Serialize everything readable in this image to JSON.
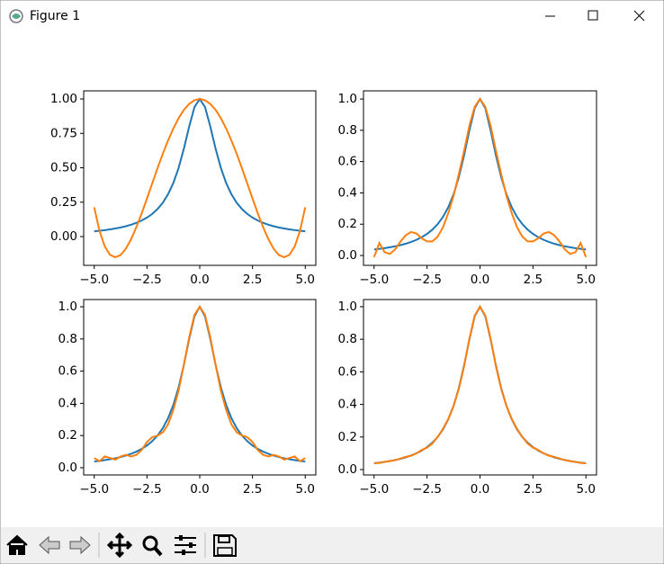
{
  "window": {
    "title": "Figure 1"
  },
  "chart_data": [
    {
      "type": "line",
      "x": [
        -5,
        -4.75,
        -4.5,
        -4.25,
        -4,
        -3.75,
        -3.5,
        -3.25,
        -3,
        -2.75,
        -2.5,
        -2.25,
        -2,
        -1.75,
        -1.5,
        -1.25,
        -1,
        -0.75,
        -0.5,
        -0.25,
        0,
        0.25,
        0.5,
        0.75,
        1,
        1.25,
        1.5,
        1.75,
        2,
        2.25,
        2.5,
        2.75,
        3,
        3.25,
        3.5,
        3.75,
        4,
        4.25,
        4.5,
        4.75,
        5
      ],
      "series": [
        {
          "color": "#1f77b4",
          "values": [
            0.0385,
            0.0424,
            0.0471,
            0.0525,
            0.0588,
            0.0664,
            0.0755,
            0.0865,
            0.1,
            0.117,
            0.138,
            0.165,
            0.2,
            0.246,
            0.308,
            0.39,
            0.5,
            0.64,
            0.8,
            0.941,
            1,
            0.941,
            0.8,
            0.64,
            0.5,
            0.39,
            0.308,
            0.246,
            0.2,
            0.165,
            0.138,
            0.117,
            0.1,
            0.0865,
            0.0755,
            0.0664,
            0.0588,
            0.0525,
            0.0471,
            0.0424,
            0.0385
          ]
        },
        {
          "color": "#ff7f0e",
          "values": [
            0.213,
            0.041,
            -0.071,
            -0.133,
            -0.15,
            -0.134,
            -0.088,
            -0.018,
            0.07,
            0.169,
            0.277,
            0.387,
            0.497,
            0.602,
            0.699,
            0.786,
            0.861,
            0.921,
            0.964,
            0.991,
            1,
            0.991,
            0.964,
            0.921,
            0.861,
            0.786,
            0.699,
            0.602,
            0.497,
            0.387,
            0.277,
            0.169,
            0.07,
            -0.018,
            -0.088,
            -0.134,
            -0.15,
            -0.133,
            -0.071,
            0.041,
            0.213
          ]
        }
      ],
      "xlim": [
        -5.5,
        5.5
      ],
      "ylim": [
        -0.209,
        1.059
      ],
      "xticks": [
        {
          "value": -5,
          "label": "−5.0"
        },
        {
          "value": -2.5,
          "label": "−2.5"
        },
        {
          "value": 0,
          "label": "0.0"
        },
        {
          "value": 2.5,
          "label": "2.5"
        },
        {
          "value": 5,
          "label": "5.0"
        }
      ],
      "yticks": [
        {
          "value": 0,
          "label": "0.00"
        },
        {
          "value": 0.25,
          "label": "0.25"
        },
        {
          "value": 0.5,
          "label": "0.50"
        },
        {
          "value": 0.75,
          "label": "0.75"
        },
        {
          "value": 1,
          "label": "1.00"
        }
      ]
    },
    {
      "type": "line",
      "x": [
        -5,
        -4.75,
        -4.5,
        -4.25,
        -4,
        -3.75,
        -3.5,
        -3.25,
        -3,
        -2.75,
        -2.5,
        -2.25,
        -2,
        -1.75,
        -1.5,
        -1.25,
        -1,
        -0.75,
        -0.5,
        -0.25,
        0,
        0.25,
        0.5,
        0.75,
        1,
        1.25,
        1.5,
        1.75,
        2,
        2.25,
        2.5,
        2.75,
        3,
        3.25,
        3.5,
        3.75,
        4,
        4.25,
        4.5,
        4.75,
        5
      ],
      "series": [
        {
          "color": "#1f77b4",
          "values": [
            0.0385,
            0.0424,
            0.0471,
            0.0525,
            0.0588,
            0.0664,
            0.0755,
            0.0865,
            0.1,
            0.117,
            0.138,
            0.165,
            0.2,
            0.246,
            0.308,
            0.39,
            0.5,
            0.64,
            0.8,
            0.941,
            1,
            0.941,
            0.8,
            0.64,
            0.5,
            0.39,
            0.308,
            0.246,
            0.2,
            0.165,
            0.138,
            0.117,
            0.1,
            0.0865,
            0.0755,
            0.0664,
            0.0588,
            0.0525,
            0.0471,
            0.0424,
            0.0385
          ]
        },
        {
          "color": "#ff7f0e",
          "values": [
            -0.01,
            0.08,
            0.02,
            0.01,
            0.04,
            0.09,
            0.13,
            0.15,
            0.14,
            0.11,
            0.09,
            0.09,
            0.12,
            0.18,
            0.27,
            0.38,
            0.52,
            0.67,
            0.83,
            0.95,
            1,
            0.95,
            0.83,
            0.67,
            0.52,
            0.38,
            0.27,
            0.18,
            0.12,
            0.09,
            0.09,
            0.11,
            0.14,
            0.15,
            0.13,
            0.09,
            0.04,
            0.01,
            0.02,
            0.08,
            -0.01
          ]
        }
      ],
      "xlim": [
        -5.5,
        5.5
      ],
      "ylim": [
        -0.063,
        1.052
      ],
      "xticks": [
        {
          "value": -5,
          "label": "−5.0"
        },
        {
          "value": -2.5,
          "label": "−2.5"
        },
        {
          "value": 0,
          "label": "0.0"
        },
        {
          "value": 2.5,
          "label": "2.5"
        },
        {
          "value": 5,
          "label": "5.0"
        }
      ],
      "yticks": [
        {
          "value": 0,
          "label": "0.0"
        },
        {
          "value": 0.2,
          "label": "0.2"
        },
        {
          "value": 0.4,
          "label": "0.4"
        },
        {
          "value": 0.6,
          "label": "0.6"
        },
        {
          "value": 0.8,
          "label": "0.8"
        },
        {
          "value": 1,
          "label": "1.0"
        }
      ]
    },
    {
      "type": "line",
      "x": [
        -5,
        -4.75,
        -4.5,
        -4.25,
        -4,
        -3.75,
        -3.5,
        -3.25,
        -3,
        -2.75,
        -2.5,
        -2.25,
        -2,
        -1.75,
        -1.5,
        -1.25,
        -1,
        -0.75,
        -0.5,
        -0.25,
        0,
        0.25,
        0.5,
        0.75,
        1,
        1.25,
        1.5,
        1.75,
        2,
        2.25,
        2.5,
        2.75,
        3,
        3.25,
        3.5,
        3.75,
        4,
        4.25,
        4.5,
        4.75,
        5
      ],
      "series": [
        {
          "color": "#1f77b4",
          "values": [
            0.0385,
            0.0424,
            0.0471,
            0.0525,
            0.0588,
            0.0664,
            0.0755,
            0.0865,
            0.1,
            0.117,
            0.138,
            0.165,
            0.2,
            0.246,
            0.308,
            0.39,
            0.5,
            0.64,
            0.8,
            0.941,
            1,
            0.941,
            0.8,
            0.64,
            0.5,
            0.39,
            0.308,
            0.246,
            0.2,
            0.165,
            0.138,
            0.117,
            0.1,
            0.0865,
            0.0755,
            0.0664,
            0.0588,
            0.0525,
            0.0471,
            0.0424,
            0.0385
          ]
        },
        {
          "color": "#ff7f0e",
          "values": [
            0.06,
            0.04,
            0.07,
            0.06,
            0.05,
            0.07,
            0.08,
            0.07,
            0.08,
            0.11,
            0.16,
            0.19,
            0.2,
            0.22,
            0.27,
            0.36,
            0.48,
            0.64,
            0.81,
            0.95,
            1,
            0.95,
            0.81,
            0.64,
            0.48,
            0.36,
            0.27,
            0.22,
            0.2,
            0.19,
            0.16,
            0.11,
            0.08,
            0.07,
            0.08,
            0.07,
            0.05,
            0.06,
            0.07,
            0.04,
            0.06
          ]
        }
      ],
      "xlim": [
        -5.5,
        5.5
      ],
      "ylim": [
        -0.045,
        1.045
      ],
      "xticks": [
        {
          "value": -5,
          "label": "−5.0"
        },
        {
          "value": -2.5,
          "label": "−2.5"
        },
        {
          "value": 0,
          "label": "0.0"
        },
        {
          "value": 2.5,
          "label": "2.5"
        },
        {
          "value": 5,
          "label": "5.0"
        }
      ],
      "yticks": [
        {
          "value": 0,
          "label": "0.0"
        },
        {
          "value": 0.2,
          "label": "0.2"
        },
        {
          "value": 0.4,
          "label": "0.4"
        },
        {
          "value": 0.6,
          "label": "0.6"
        },
        {
          "value": 0.8,
          "label": "0.8"
        },
        {
          "value": 1,
          "label": "1.0"
        }
      ]
    },
    {
      "type": "line",
      "x": [
        -5,
        -4.75,
        -4.5,
        -4.25,
        -4,
        -3.75,
        -3.5,
        -3.25,
        -3,
        -2.75,
        -2.5,
        -2.25,
        -2,
        -1.75,
        -1.5,
        -1.25,
        -1,
        -0.75,
        -0.5,
        -0.25,
        0,
        0.25,
        0.5,
        0.75,
        1,
        1.25,
        1.5,
        1.75,
        2,
        2.25,
        2.5,
        2.75,
        3,
        3.25,
        3.5,
        3.75,
        4,
        4.25,
        4.5,
        4.75,
        5
      ],
      "series": [
        {
          "color": "#1f77b4",
          "values": [
            0.0385,
            0.0424,
            0.0471,
            0.0525,
            0.0588,
            0.0664,
            0.0755,
            0.0865,
            0.1,
            0.117,
            0.138,
            0.165,
            0.2,
            0.246,
            0.308,
            0.39,
            0.5,
            0.64,
            0.8,
            0.941,
            1,
            0.941,
            0.8,
            0.64,
            0.5,
            0.39,
            0.308,
            0.246,
            0.2,
            0.165,
            0.138,
            0.117,
            0.1,
            0.0865,
            0.0755,
            0.0664,
            0.0588,
            0.0525,
            0.0471,
            0.0424,
            0.0385
          ]
        },
        {
          "color": "#ff7f0e",
          "values": [
            0.04,
            0.04,
            0.048,
            0.052,
            0.058,
            0.068,
            0.078,
            0.085,
            0.1,
            0.12,
            0.135,
            0.16,
            0.2,
            0.25,
            0.31,
            0.39,
            0.495,
            0.635,
            0.805,
            0.945,
            1,
            0.945,
            0.805,
            0.635,
            0.495,
            0.39,
            0.31,
            0.25,
            0.2,
            0.16,
            0.135,
            0.12,
            0.1,
            0.085,
            0.078,
            0.068,
            0.058,
            0.052,
            0.048,
            0.04,
            0.04
          ]
        }
      ],
      "xlim": [
        -5.5,
        5.5
      ],
      "ylim": [
        -0.033,
        1.044
      ],
      "xticks": [
        {
          "value": -5,
          "label": "−5.0"
        },
        {
          "value": -2.5,
          "label": "−2.5"
        },
        {
          "value": 0,
          "label": "0.0"
        },
        {
          "value": 2.5,
          "label": "2.5"
        },
        {
          "value": 5,
          "label": "5.0"
        }
      ],
      "yticks": [
        {
          "value": 0,
          "label": "0.0"
        },
        {
          "value": 0.2,
          "label": "0.2"
        },
        {
          "value": 0.4,
          "label": "0.4"
        },
        {
          "value": 0.6,
          "label": "0.6"
        },
        {
          "value": 0.8,
          "label": "0.8"
        },
        {
          "value": 1,
          "label": "1.0"
        }
      ]
    }
  ]
}
